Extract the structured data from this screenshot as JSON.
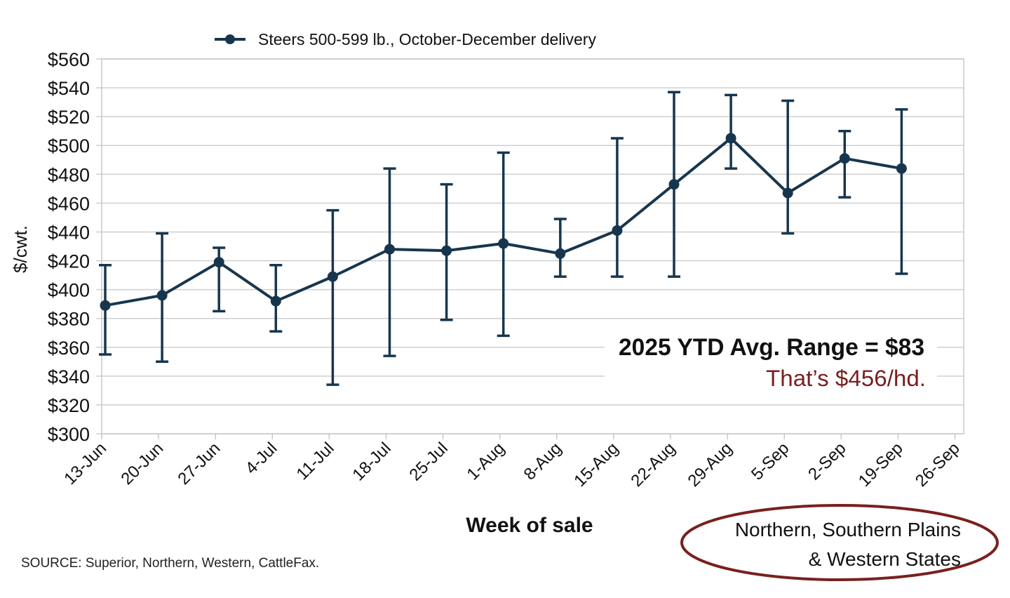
{
  "chart_data": {
    "type": "line",
    "legend": {
      "label": "Steers 500-599 lb., October-December delivery",
      "placement": "top"
    },
    "xlabel": "Week of sale",
    "ylabel": "$/cwt.",
    "ylim": [
      300,
      560
    ],
    "yticks": [
      "$300",
      "$320",
      "$340",
      "$360",
      "$380",
      "$400",
      "$420",
      "$440",
      "$460",
      "$480",
      "$500",
      "$520",
      "$540",
      "$560"
    ],
    "categories": [
      "13-Jun",
      "20-Jun",
      "27-Jun",
      "4-Jul",
      "11-Jul",
      "18-Jul",
      "25-Jul",
      "1-Aug",
      "8-Aug",
      "15-Aug",
      "22-Aug",
      "29-Aug",
      "5-Sep",
      "2-Sep",
      "19-Sep",
      "26-Sep"
    ],
    "grid": true,
    "series": [
      {
        "name": "Steers 500-599 lb., October-December delivery",
        "color": "#17364e",
        "values": [
          389,
          396,
          419,
          392,
          409,
          428,
          427,
          432,
          425,
          441,
          473,
          505,
          467,
          491,
          484,
          null
        ],
        "high": [
          417,
          439,
          429,
          417,
          455,
          484,
          473,
          495,
          449,
          505,
          537,
          535,
          531,
          510,
          525,
          null
        ],
        "low": [
          355,
          350,
          385,
          371,
          334,
          354,
          379,
          368,
          409,
          409,
          409,
          484,
          439,
          464,
          411,
          null
        ]
      }
    ],
    "annotations": {
      "headline": "2025 YTD Avg. Range = $83",
      "subline": "That’s $456/hd.",
      "subline_color": "#7a1f1f",
      "region": "Northern, Southern Plains",
      "region_line2": "& Western States",
      "region_outline_color": "#7a1f1f"
    },
    "source": "SOURCE: Superior, Northern, Western, CattleFax."
  }
}
